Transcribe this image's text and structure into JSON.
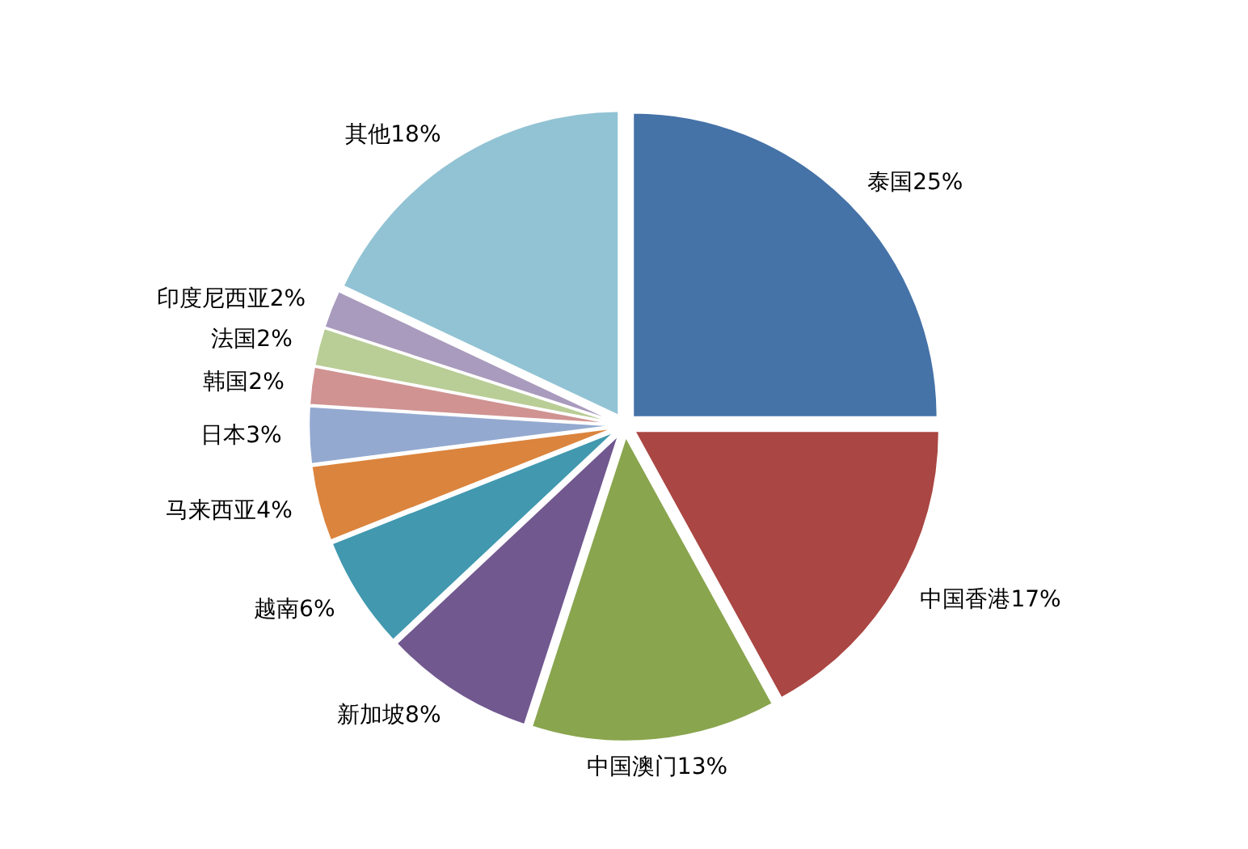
{
  "chart_data": {
    "type": "pie",
    "categories": [
      "泰国",
      "中国香港",
      "中国澳门",
      "新加坡",
      "越南",
      "马来西亚",
      "日本",
      "韩国",
      "法国",
      "印度尼西亚",
      "其他"
    ],
    "values": [
      25,
      17,
      13,
      8,
      6,
      4,
      3,
      2,
      2,
      2,
      18
    ],
    "value_labels": [
      "25%",
      "17%",
      "13%",
      "8%",
      "6%",
      "4%",
      "3%",
      "2%",
      "2%",
      "2%",
      "18%"
    ],
    "colors": [
      "#4572a7",
      "#aa4643",
      "#89a54e",
      "#71588f",
      "#4198af",
      "#db843d",
      "#93a9d0",
      "#d09392",
      "#b9cd96",
      "#a99bbd",
      "#92c3d4"
    ]
  }
}
